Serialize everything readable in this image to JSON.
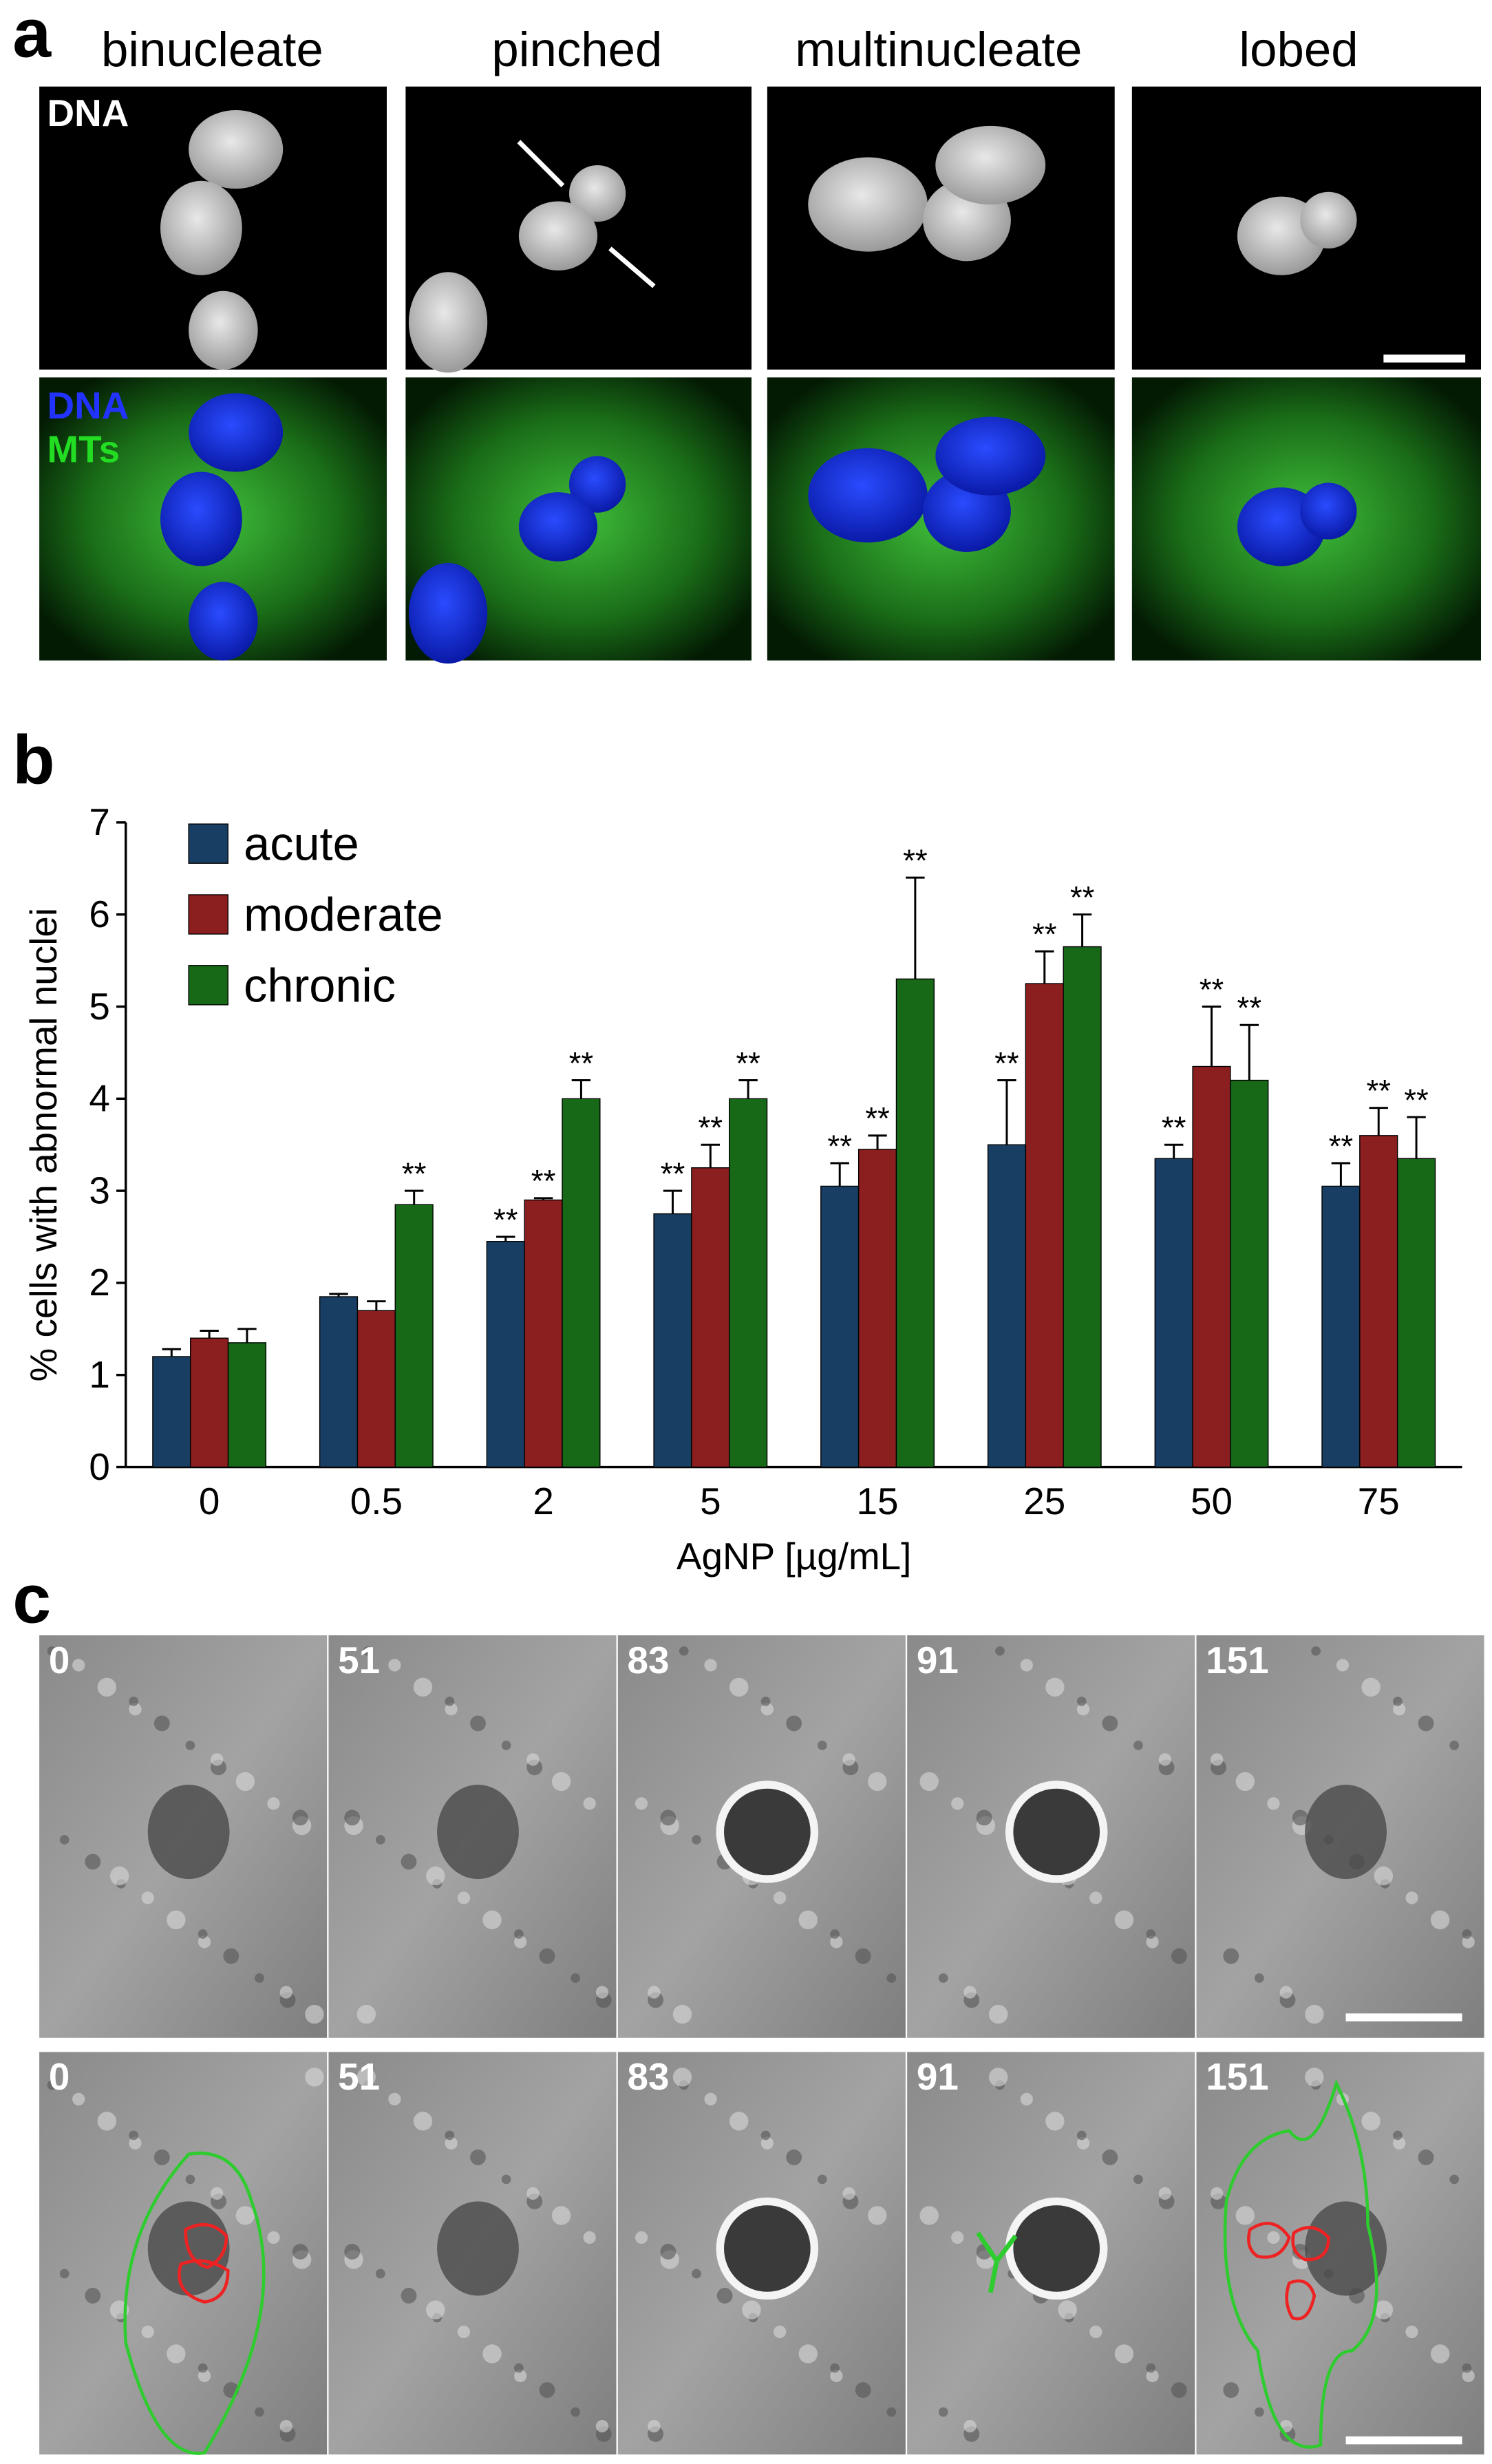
{
  "panels": {
    "a": {
      "label": "a",
      "columns": [
        "binucleate",
        "pinched",
        "multinucleate",
        "lobed"
      ],
      "top_row_label": "DNA",
      "bottom_row_labels": [
        "DNA",
        "MTs"
      ]
    },
    "b": {
      "label": "b"
    },
    "c": {
      "label": "c",
      "rows": [
        [
          "0",
          "51",
          "83",
          "91",
          "151"
        ],
        [
          "0",
          "51",
          "83",
          "91",
          "151"
        ]
      ]
    }
  },
  "chart_data": {
    "type": "bar",
    "ylabel": "% cells with abnormal nuclei",
    "xlabel": "AgNP [µg/mL]",
    "categories": [
      "0",
      "0.5",
      "2",
      "5",
      "15",
      "25",
      "50",
      "75"
    ],
    "series": [
      {
        "name": "acute",
        "color": "#183f63",
        "values": [
          1.2,
          1.85,
          2.45,
          2.75,
          3.05,
          3.5,
          3.35,
          3.05
        ],
        "errors": [
          0.08,
          0.03,
          0.05,
          0.25,
          0.25,
          0.7,
          0.15,
          0.25
        ],
        "annotations": [
          null,
          null,
          "**",
          "**",
          "**",
          "**",
          "**",
          "**"
        ]
      },
      {
        "name": "moderate",
        "color": "#8b1e1e",
        "values": [
          1.4,
          1.7,
          2.9,
          3.25,
          3.45,
          5.25,
          4.35,
          3.6
        ],
        "errors": [
          0.08,
          0.1,
          0.02,
          0.25,
          0.15,
          0.35,
          0.65,
          0.3
        ],
        "annotations": [
          null,
          null,
          "**",
          "**",
          "**",
          "**",
          "**",
          "**"
        ]
      },
      {
        "name": "chronic",
        "color": "#176817",
        "values": [
          1.35,
          2.85,
          4.0,
          4.0,
          5.3,
          5.65,
          4.2,
          3.35
        ],
        "errors": [
          0.15,
          0.15,
          0.2,
          0.2,
          1.1,
          0.35,
          0.6,
          0.45
        ],
        "annotations": [
          null,
          "**",
          "**",
          "**",
          "**",
          "**",
          "**",
          "**"
        ]
      }
    ],
    "ylim": [
      0,
      7
    ],
    "yticks": [
      0,
      1,
      2,
      3,
      4,
      5,
      6,
      7
    ]
  }
}
